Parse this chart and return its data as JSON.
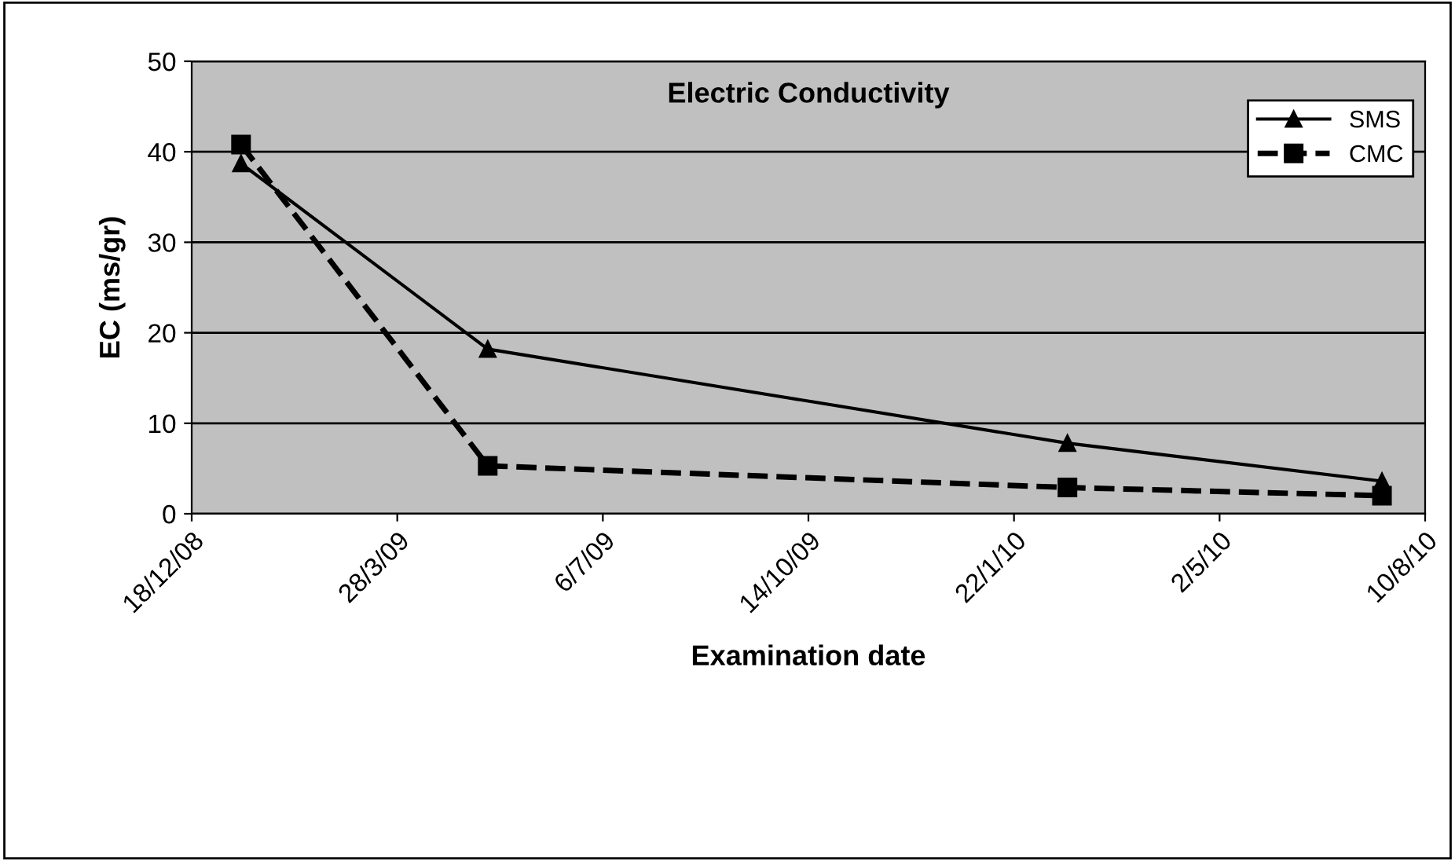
{
  "chart_data": {
    "type": "line",
    "title": "Electric Conductivity",
    "xlabel": "Examination date",
    "ylabel": "EC (ms/gr)",
    "x": [
      "2009-01-11",
      "2009-05-11",
      "2010-02-17",
      "2010-07-20"
    ],
    "series": [
      {
        "name": "SMS",
        "color": "#000000",
        "marker": "triangle",
        "line_style": "solid",
        "values": [
          38.7,
          18.2,
          7.8,
          3.6
        ]
      },
      {
        "name": "CMC",
        "color": "#000000",
        "marker": "square",
        "line_style": "dashed",
        "values": [
          40.8,
          5.3,
          2.9,
          2.0
        ]
      }
    ],
    "xlim": [
      "2008-12-18",
      "2010-08-10"
    ],
    "xticks": [
      {
        "value": "2008-12-18",
        "label": "18/12/08"
      },
      {
        "value": "2009-03-28",
        "label": "28/3/09"
      },
      {
        "value": "2009-07-06",
        "label": "6/7/09"
      },
      {
        "value": "2009-10-14",
        "label": "14/10/09"
      },
      {
        "value": "2010-01-22",
        "label": "22/1/10"
      },
      {
        "value": "2010-05-02",
        "label": "2/5/10"
      },
      {
        "value": "2010-08-10",
        "label": "10/8/10"
      }
    ],
    "ylim": [
      0,
      50
    ],
    "yticks": [
      0,
      10,
      20,
      30,
      40,
      50
    ],
    "grid": "y",
    "legend": "top right"
  }
}
